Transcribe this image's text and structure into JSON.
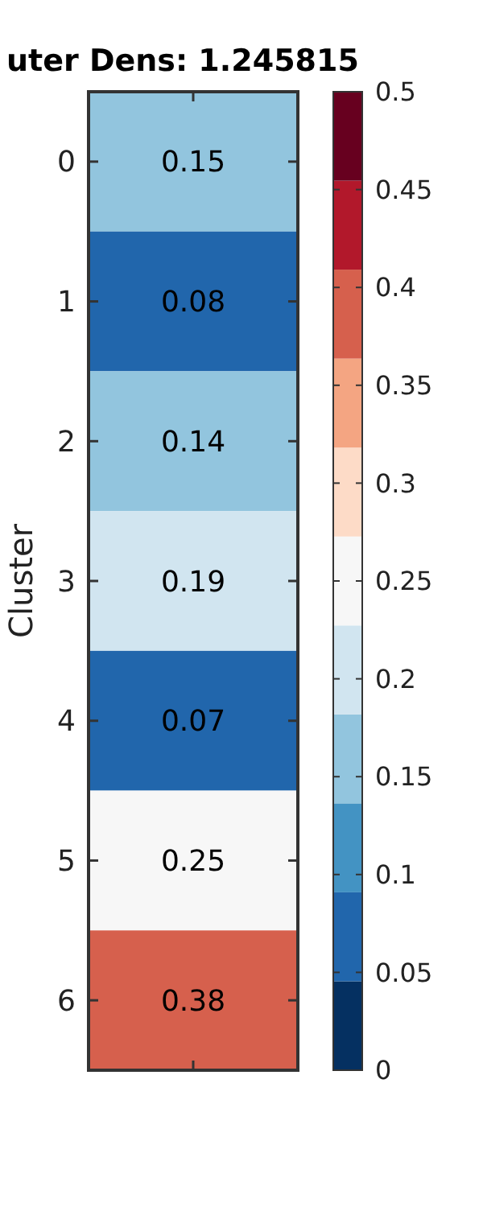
{
  "chart_data": {
    "type": "heatmap",
    "title": "uter Dens: 1.245815",
    "ylabel": "Cluster",
    "categories": [
      null
    ],
    "y_categories": [
      "0",
      "1",
      "2",
      "3",
      "4",
      "5",
      "6"
    ],
    "cells": [
      [
        0.15
      ],
      [
        0.08
      ],
      [
        0.14
      ],
      [
        0.19
      ],
      [
        0.07
      ],
      [
        0.25
      ],
      [
        0.38
      ]
    ],
    "data_labels": true,
    "clim": [
      0,
      0.5
    ],
    "cticks": [
      0,
      0.05,
      0.1,
      0.15,
      0.2,
      0.25,
      0.3,
      0.35,
      0.4,
      0.45,
      0.5
    ]
  }
}
